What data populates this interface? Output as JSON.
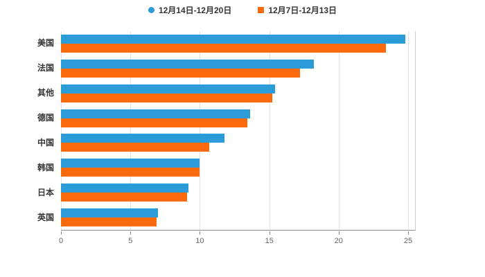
{
  "chart_data": {
    "type": "bar",
    "orientation": "horizontal",
    "title": "",
    "xlabel": "",
    "ylabel": "",
    "categories": [
      "美国",
      "法国",
      "其他",
      "德国",
      "中国",
      "韩国",
      "日本",
      "英国"
    ],
    "series": [
      {
        "name": "12月14日-12月20日",
        "color": "#2b9cd8",
        "marker": "circle",
        "values": [
          24.8,
          18.2,
          15.4,
          13.6,
          11.8,
          10.0,
          9.2,
          7.0
        ]
      },
      {
        "name": "12月7日-12月13日",
        "color": "#fb6a0d",
        "marker": "square",
        "values": [
          23.4,
          17.2,
          15.2,
          13.4,
          10.7,
          10.0,
          9.1,
          6.9
        ]
      }
    ],
    "xticks": [
      0,
      5,
      10,
      15,
      20,
      25
    ],
    "xlim": [
      0,
      25.5
    ],
    "grid": true,
    "legend_position": "top",
    "text_color": "#333333",
    "tick_color": "#666666",
    "gridline_color": "#e3e3e3",
    "axis_color": "#8b8b8b",
    "background_color": "#ffffff"
  }
}
